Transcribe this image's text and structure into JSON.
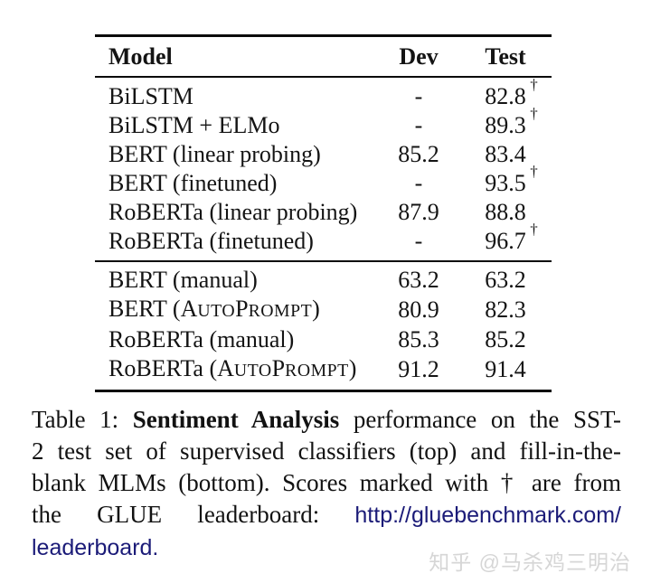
{
  "table": {
    "dagger_symbol": "†",
    "columns": {
      "model": "Model",
      "dev": "Dev",
      "test": "Test"
    },
    "sections": [
      {
        "rows": [
          {
            "model": [
              {
                "t": "BiLSTM"
              }
            ],
            "dev": "-",
            "test": "82.8",
            "dagger": true
          },
          {
            "model": [
              {
                "t": "BiLSTM + ELMo"
              }
            ],
            "dev": "-",
            "test": "89.3",
            "dagger": true
          },
          {
            "model": [
              {
                "t": "BERT (linear probing)"
              }
            ],
            "dev": "85.2",
            "test": "83.4",
            "dagger": false
          },
          {
            "model": [
              {
                "t": "BERT (finetuned)"
              }
            ],
            "dev": "-",
            "test": "93.5",
            "dagger": true
          },
          {
            "model": [
              {
                "t": "RoBERTa (linear probing)"
              }
            ],
            "dev": "87.9",
            "test": "88.8",
            "dagger": false
          },
          {
            "model": [
              {
                "t": "RoBERTa (finetuned)"
              }
            ],
            "dev": "-",
            "test": "96.7",
            "dagger": true
          }
        ]
      },
      {
        "rows": [
          {
            "model": [
              {
                "t": "BERT (manual)"
              }
            ],
            "dev": "63.2",
            "test": "63.2",
            "dagger": false
          },
          {
            "model": [
              {
                "t": "BERT ("
              },
              {
                "t": "AutoPrompt",
                "sc": true
              },
              {
                "t": ")"
              }
            ],
            "dev": "80.9",
            "test": "82.3",
            "dagger": false
          },
          {
            "model": [
              {
                "t": "RoBERTa (manual)"
              }
            ],
            "dev": "85.3",
            "test": "85.2",
            "dagger": false
          },
          {
            "model": [
              {
                "t": "RoBERTa ("
              },
              {
                "t": "AutoPrompt",
                "sc": true
              },
              {
                "t": ")"
              }
            ],
            "dev": "91.2",
            "test": "91.4",
            "dagger": false
          }
        ]
      }
    ]
  },
  "caption": {
    "lines": [
      {
        "justify": true,
        "segments": [
          {
            "t": "Table 1: "
          },
          {
            "t": "Sentiment Analysis",
            "b": true
          },
          {
            "t": " performance on the SST-"
          }
        ]
      },
      {
        "justify": true,
        "segments": [
          {
            "t": "2 test set of supervised classifiers (top) and fill-in-the-"
          }
        ]
      },
      {
        "justify": true,
        "segments": [
          {
            "t": "blank MLMs (bottom). Scores marked with † are from"
          }
        ]
      },
      {
        "justify": true,
        "segments": [
          {
            "t": "the GLUE leaderboard: "
          },
          {
            "t": "http://gluebenchmark.com/",
            "link": true
          }
        ]
      },
      {
        "justify": false,
        "segments": [
          {
            "t": "leaderboard.",
            "link": true
          }
        ]
      }
    ]
  },
  "watermark": {
    "text": "知乎 @马杀鸡三明治"
  },
  "colors": {
    "link": "#1b1b78",
    "text": "#121212",
    "rule": "#0a0a0a",
    "watermark": "#d6d6d6"
  }
}
